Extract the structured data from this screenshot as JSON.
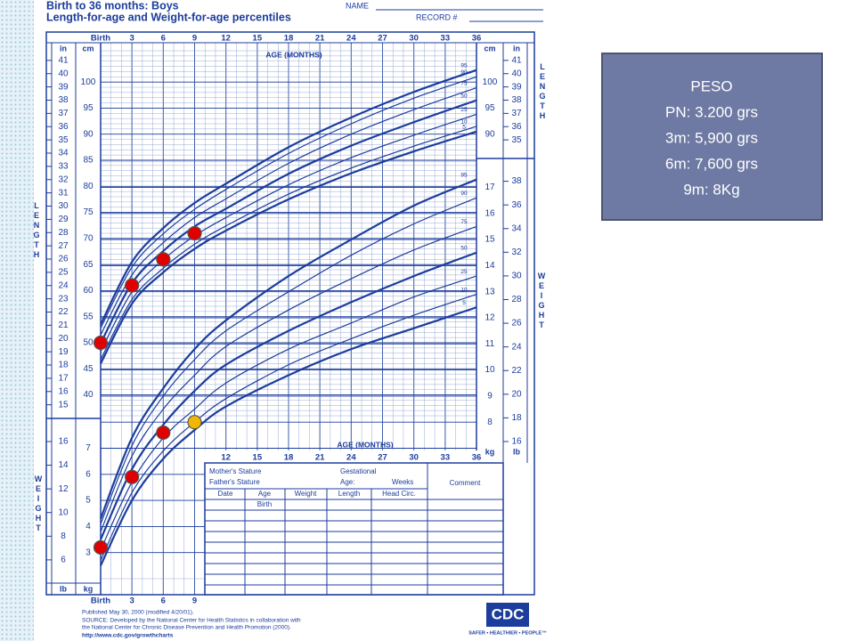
{
  "header": {
    "title": "Birth to 36 months: Boys",
    "subtitle": "Length-for-age and Weight-for-age percentiles",
    "name_label": "NAME",
    "record_label": "RECORD #"
  },
  "chart_data": [
    {
      "type": "line",
      "x_label": "AGE (MONTHS)",
      "y_label": "LENGTH",
      "y_unit": "cm",
      "y2_unit": "in",
      "x": [
        0,
        3,
        6,
        9,
        12,
        18,
        24,
        30,
        36
      ],
      "xlim": [
        0,
        36
      ],
      "xticks": [
        {
          "value": 0,
          "label": "Birth"
        },
        3,
        6,
        9,
        12,
        15,
        18,
        21,
        24,
        27,
        30,
        33,
        36
      ],
      "ylim": [
        36,
        106
      ],
      "yticks": [
        40,
        45,
        50,
        55,
        60,
        65,
        70,
        75,
        80,
        85,
        90,
        95,
        100
      ],
      "y2lim": [
        14.17,
        41.73
      ],
      "y2ticks": [
        15,
        16,
        17,
        18,
        19,
        20,
        21,
        22,
        23,
        24,
        25,
        26,
        27,
        28,
        29,
        30,
        31,
        32,
        33,
        34,
        35,
        36,
        37,
        38,
        39,
        40,
        41
      ],
      "grid": true,
      "series": [
        {
          "name": "95",
          "color": "#1c3d9c",
          "line_width": 2.2,
          "values": [
            53.5,
            65.5,
            72.0,
            76.8,
            80.5,
            87.5,
            93.2,
            98.1,
            102.3
          ]
        },
        {
          "name": "90",
          "color": "#1c3d9c",
          "line_width": 1.2,
          "values": [
            52.8,
            64.5,
            70.9,
            75.6,
            79.4,
            86.3,
            92.0,
            96.9,
            101.0
          ]
        },
        {
          "name": "75",
          "color": "#1c3d9c",
          "line_width": 1.2,
          "values": [
            51.5,
            63.0,
            69.2,
            74.0,
            77.6,
            84.4,
            90.0,
            94.7,
            98.9
          ]
        },
        {
          "name": "50",
          "color": "#1c3d9c",
          "line_width": 2.2,
          "values": [
            49.9,
            61.4,
            67.6,
            72.3,
            75.7,
            82.4,
            87.8,
            92.3,
            96.5
          ]
        },
        {
          "name": "25",
          "color": "#1c3d9c",
          "line_width": 1.2,
          "values": [
            48.3,
            59.8,
            65.9,
            70.5,
            74.0,
            80.3,
            85.5,
            89.8,
            93.8
          ]
        },
        {
          "name": "10",
          "color": "#1c3d9c",
          "line_width": 1.2,
          "values": [
            46.8,
            58.3,
            64.3,
            68.9,
            72.4,
            78.5,
            83.5,
            87.7,
            91.5
          ]
        },
        {
          "name": "5",
          "color": "#1c3d9c",
          "line_width": 2.2,
          "values": [
            46.0,
            57.5,
            63.5,
            68.0,
            71.5,
            77.5,
            82.5,
            86.7,
            90.5
          ]
        }
      ],
      "points": {
        "x": [
          0,
          3,
          6,
          9
        ],
        "values": [
          50,
          61,
          66,
          71
        ],
        "colors": [
          "#e00000",
          "#e00000",
          "#e00000",
          "#e00000"
        ]
      }
    },
    {
      "type": "line",
      "x_label": "AGE (MONTHS)",
      "y_label": "WEIGHT",
      "y_unit": "kg",
      "y2_unit": "lb",
      "x": [
        0,
        3,
        6,
        9,
        12,
        18,
        24,
        30,
        36
      ],
      "xlim": [
        0,
        36
      ],
      "xticks": [
        {
          "value": 0,
          "label": "Birth"
        },
        3,
        6,
        9,
        12,
        15,
        18,
        21,
        24,
        27,
        30,
        33,
        36
      ],
      "ylim": [
        2,
        18.6
      ],
      "yticks": [
        3,
        4,
        5,
        6,
        7,
        8,
        9,
        10,
        11,
        12,
        13,
        14,
        15,
        16,
        17
      ],
      "y2lim": [
        4.41,
        41.01
      ],
      "y2ticks": [
        6,
        8,
        10,
        12,
        14,
        16,
        18,
        20,
        22,
        24,
        26,
        28,
        30,
        32,
        34,
        36,
        38
      ],
      "grid": true,
      "series": [
        {
          "name": "95",
          "color": "#1c3d9c",
          "line_width": 2.2,
          "values": [
            4.3,
            7.4,
            9.3,
            10.8,
            11.9,
            13.6,
            15.0,
            16.3,
            17.3
          ]
        },
        {
          "name": "90",
          "color": "#1c3d9c",
          "line_width": 1.2,
          "values": [
            4.1,
            7.1,
            9.0,
            10.4,
            11.5,
            13.0,
            14.4,
            15.6,
            16.6
          ]
        },
        {
          "name": "75",
          "color": "#1c3d9c",
          "line_width": 1.2,
          "values": [
            3.8,
            6.7,
            8.5,
            9.8,
            10.9,
            12.3,
            13.5,
            14.6,
            15.5
          ]
        },
        {
          "name": "50",
          "color": "#1c3d9c",
          "line_width": 2.2,
          "values": [
            3.5,
            6.2,
            7.9,
            9.2,
            10.2,
            11.5,
            12.6,
            13.6,
            14.5
          ]
        },
        {
          "name": "25",
          "color": "#1c3d9c",
          "line_width": 1.2,
          "values": [
            3.1,
            5.7,
            7.4,
            8.5,
            9.5,
            10.8,
            11.8,
            12.8,
            13.6
          ]
        },
        {
          "name": "10",
          "color": "#1c3d9c",
          "line_width": 1.2,
          "values": [
            2.7,
            5.3,
            6.9,
            8.0,
            8.9,
            10.2,
            11.2,
            12.1,
            12.9
          ]
        },
        {
          "name": "5",
          "color": "#1c3d9c",
          "line_width": 2.2,
          "values": [
            2.5,
            5.0,
            6.6,
            7.7,
            8.6,
            9.8,
            10.8,
            11.6,
            12.4
          ]
        }
      ],
      "points": {
        "x": [
          0,
          3,
          6,
          9
        ],
        "values": [
          3.2,
          5.9,
          7.6,
          8
        ],
        "colors": [
          "#e00000",
          "#e00000",
          "#e00000",
          "#f2b705"
        ]
      }
    }
  ],
  "table": {
    "mother": "Mother's Stature",
    "gestational": "Gestational",
    "father": "Father's Stature",
    "age": "Age:",
    "weeks": "Weeks",
    "comment": "Comment",
    "columns": [
      "Date",
      "Age",
      "Weight",
      "Length",
      "Head Circ."
    ],
    "first_row_age": "Birth"
  },
  "footer": {
    "published": "Published May 30, 2000 (modified 4/20/01).",
    "source": [
      "SOURCE: Developed by the National Center for Health Statistics in collaboration with",
      "the National Center for Chronic Disease Prevention and Health Promotion (2000)."
    ],
    "url": "http://www.cdc.gov/growthcharts",
    "logo": "CDC",
    "slogan": "SAFER • HEALTHIER • PEOPLE™"
  },
  "box": {
    "lines": [
      "PESO",
      "PN: 3.200 grs",
      "3m: 5,900 grs",
      "6m:  7,600 grs",
      "9m:  8Kg"
    ]
  }
}
